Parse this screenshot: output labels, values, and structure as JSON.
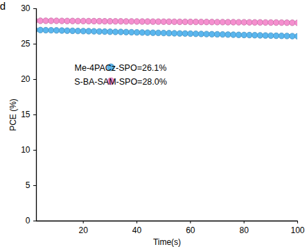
{
  "chart_data": {
    "type": "scatter",
    "annotations": [
      "d"
    ],
    "x_label": "Time(s)",
    "y_label": "PCE (%)",
    "x": [
      2,
      4,
      6,
      8,
      10,
      12,
      14,
      16,
      18,
      20,
      22,
      24,
      26,
      28,
      30,
      32,
      34,
      36,
      38,
      40,
      42,
      44,
      46,
      48,
      50,
      52,
      54,
      56,
      58,
      60,
      62,
      64,
      66,
      68,
      70,
      72,
      74,
      76,
      78,
      80,
      82,
      84,
      86,
      88,
      90,
      92,
      94,
      96,
      98,
      100
    ],
    "series": [
      {
        "name": "Me-4PACz-SPO=26.1%",
        "color": "#5ab6ee",
        "marker": "circle",
        "values": [
          27.0,
          26.98,
          26.96,
          26.95,
          26.93,
          26.91,
          26.89,
          26.87,
          26.85,
          26.83,
          26.82,
          26.8,
          26.78,
          26.76,
          26.74,
          26.72,
          26.71,
          26.69,
          26.67,
          26.65,
          26.63,
          26.61,
          26.6,
          26.58,
          26.56,
          26.54,
          26.52,
          26.5,
          26.49,
          26.47,
          26.45,
          26.43,
          26.41,
          26.39,
          26.38,
          26.36,
          26.34,
          26.32,
          26.3,
          26.28,
          26.27,
          26.25,
          26.23,
          26.21,
          26.19,
          26.17,
          26.16,
          26.14,
          26.12,
          26.1
        ]
      },
      {
        "name": "S-BA-SAM-SPO=28.0%",
        "color": "#f58fcf",
        "marker": "circle",
        "values": [
          28.3,
          28.29,
          28.29,
          28.28,
          28.28,
          28.27,
          28.26,
          28.26,
          28.25,
          28.25,
          28.24,
          28.24,
          28.23,
          28.22,
          28.22,
          28.21,
          28.21,
          28.2,
          28.2,
          28.19,
          28.18,
          28.18,
          28.17,
          28.17,
          28.16,
          28.16,
          28.15,
          28.14,
          28.14,
          28.13,
          28.13,
          28.12,
          28.12,
          28.11,
          28.1,
          28.1,
          28.09,
          28.09,
          28.08,
          28.08,
          28.07,
          28.06,
          28.06,
          28.05,
          28.04,
          28.04,
          28.03,
          28.02,
          28.01,
          28.0
        ]
      }
    ],
    "xlim": [
      2.5,
      100
    ],
    "xticks": [
      20,
      40,
      60,
      80,
      100
    ],
    "ylim": [
      0,
      30
    ],
    "yticks": [
      0,
      5,
      10,
      15,
      20,
      25,
      30
    ],
    "legend": "top",
    "grid": false
  }
}
